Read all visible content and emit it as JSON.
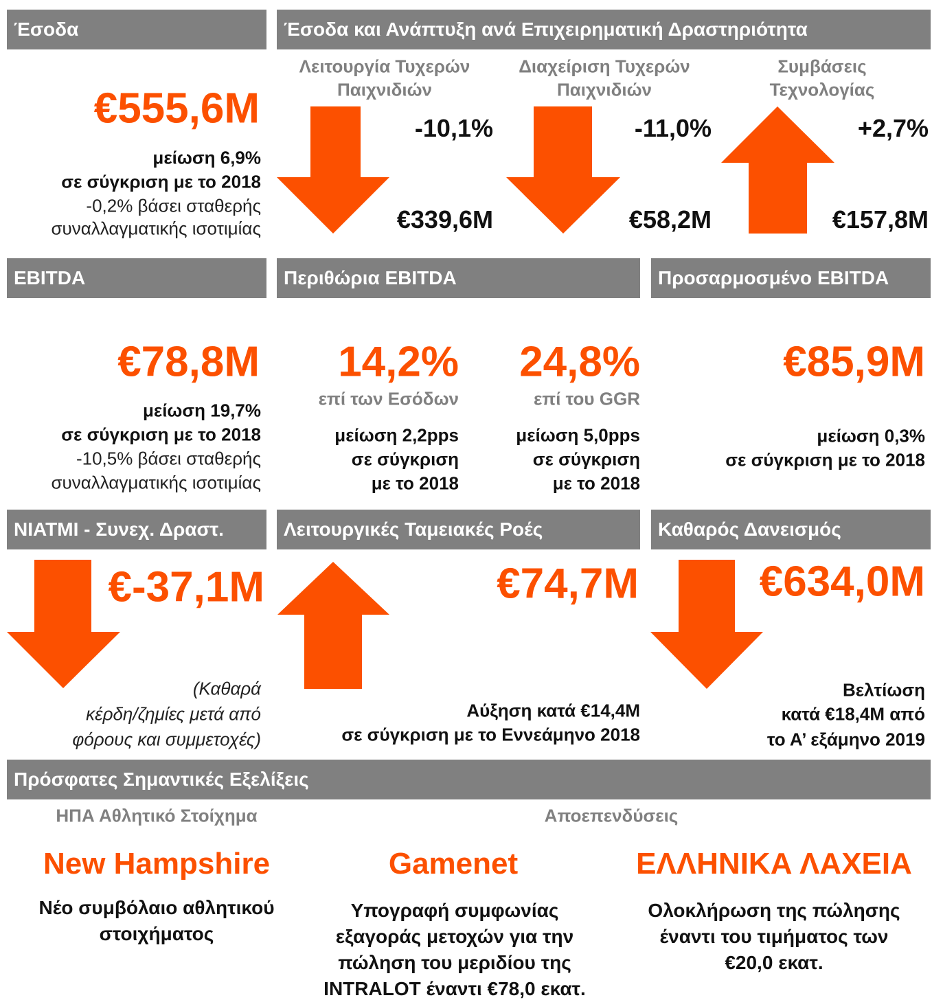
{
  "revenue": {
    "header": "Έσοδα",
    "value": "€555,6M",
    "bold_lines": [
      "μείωση 6,9%",
      "σε σύγκριση με το 2018"
    ],
    "note_lines": [
      "-0,2% βάσει σταθερής",
      "συναλλαγματικής ισοτιμίας"
    ]
  },
  "business": {
    "header": "Έσοδα και Ανάπτυξη ανά Επιχειρηματική Δραστηριότητα",
    "segments": [
      {
        "name_lines": [
          "Λειτουργία Τυχερών",
          "Παιχνιδιών"
        ],
        "change": "-10,1%",
        "value": "€339,6M"
      },
      {
        "name_lines": [
          "Διαχείριση Τυχερών",
          "Παιχνιδιών"
        ],
        "change": "-11,0%",
        "value": "€58,2M"
      },
      {
        "name_lines": [
          "Συμβάσεις",
          "Τεχνολογίας"
        ],
        "change": "+2,7%",
        "value": "€157,8M"
      }
    ]
  },
  "ebitda": {
    "header": "EBITDA",
    "value": "€78,8M",
    "bold_lines": [
      "μείωση 19,7%",
      "σε σύγκριση με το 2018"
    ],
    "note_lines": [
      "-10,5% βάσει σταθερής",
      "συναλλαγματικής ισοτιμίας"
    ]
  },
  "margins": {
    "header": "Περιθώρια EBITDA",
    "items": [
      {
        "value": "14,2%",
        "basis": "επί των Εσόδων",
        "lines": [
          "μείωση 2,2pps",
          "σε σύγκριση",
          "με το 2018"
        ]
      },
      {
        "value": "24,8%",
        "basis": "επί του GGR",
        "lines": [
          "μείωση 5,0pps",
          "σε σύγκριση",
          "με το 2018"
        ]
      }
    ]
  },
  "adjusted_ebitda": {
    "header": "Προσαρμοσμένο EBITDA",
    "value": "€85,9M",
    "lines": [
      "μείωση 0,3%",
      "σε σύγκριση με το 2018"
    ]
  },
  "niatmi": {
    "header": "NIATMI - Συνεχ. Δραστ.",
    "value": "€-37,1M",
    "note_lines": [
      "(Καθαρά",
      "κέρδη/ζημίες μετά από",
      "φόρους και συμμετοχές)"
    ]
  },
  "cash_flows": {
    "header": "Λειτουργικές Ταμειακές Ροές",
    "value": "€74,7M",
    "lines": [
      "Αύξηση κατά €14,4M",
      "σε σύγκριση με το Εννεάμηνο 2018"
    ]
  },
  "net_debt": {
    "header": "Καθαρός Δανεισμός",
    "value": "€634,0M",
    "lines": [
      "Βελτίωση",
      "κατά €18,4M από",
      "το Α’ εξάμηνο 2019"
    ]
  },
  "developments": {
    "header": "Πρόσφατες Σημαντικές Εξελίξεις",
    "groups": [
      "ΗΠΑ Αθλητικό Στοίχημα",
      "Αποεπενδύσεις"
    ],
    "items": [
      {
        "title": "New Hampshire",
        "lines": [
          "Νέο συμβόλαιο αθλητικού",
          "στοιχήματος"
        ]
      },
      {
        "title": "Gamenet",
        "lines": [
          "Υπογραφή συμφωνίας",
          "εξαγοράς μετοχών για την",
          "πώληση του μεριδίου της",
          "INTRALOT έναντι €78,0 εκατ."
        ]
      },
      {
        "title": "ΕΛΛΗΝΙΚΑ ΛΑΧΕΙΑ",
        "lines": [
          "Ολοκλήρωση της πώλησης",
          "έναντι του τιμήματος των",
          "€20,0 εκατ."
        ]
      }
    ]
  }
}
